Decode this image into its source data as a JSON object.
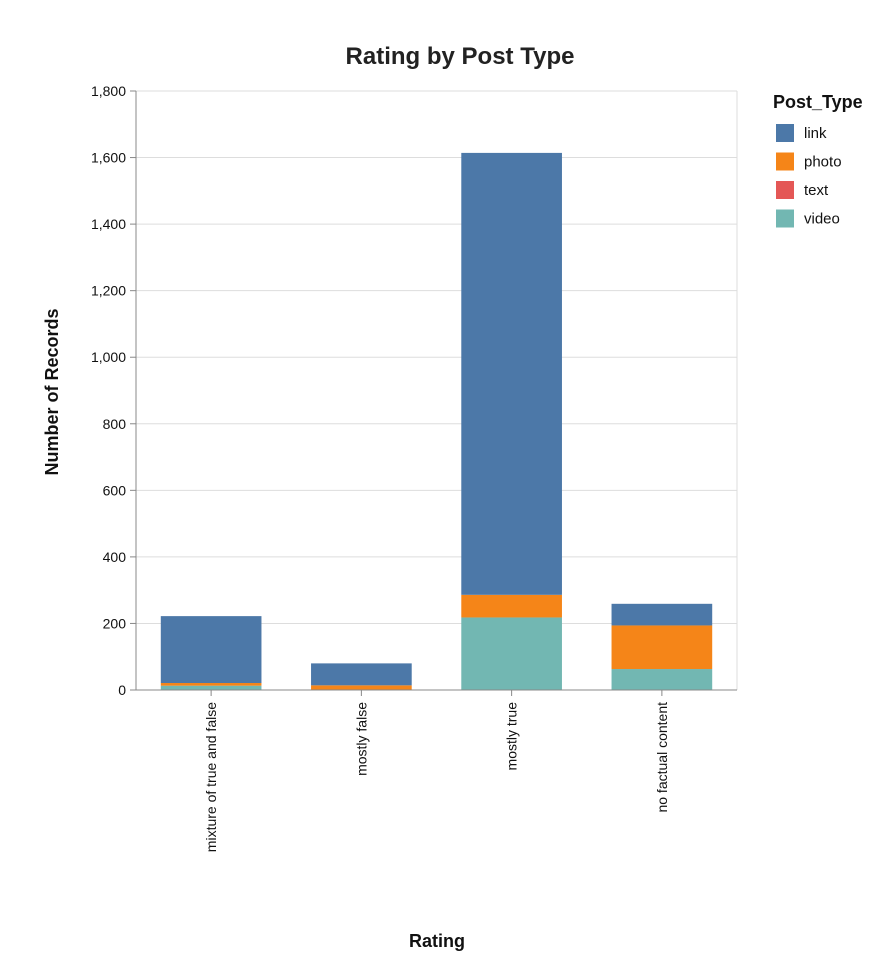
{
  "chart_data": {
    "type": "bar",
    "stacked": true,
    "title": "Rating by Post Type",
    "xlabel": "Rating",
    "ylabel": "Number of Records",
    "categories": [
      "mixture of true and false",
      "mostly false",
      "mostly true",
      "no factual content"
    ],
    "ylim": [
      0,
      1800
    ],
    "yticks": [
      0,
      200,
      400,
      600,
      800,
      1000,
      1200,
      1400,
      1600,
      1800
    ],
    "ytick_labels": [
      "0",
      "200",
      "400",
      "600",
      "800",
      "1,000",
      "1,200",
      "1,400",
      "1,600",
      "1,800"
    ],
    "grid": true,
    "legend": {
      "title": "Post_Type",
      "placement": "right"
    },
    "series": [
      {
        "name": "video",
        "color": "#72b7b2",
        "values": [
          13,
          1,
          218,
          63
        ]
      },
      {
        "name": "text",
        "color": "#e45756",
        "values": [
          0,
          0,
          0,
          0
        ]
      },
      {
        "name": "photo",
        "color": "#f58518",
        "values": [
          8,
          13,
          68,
          131
        ]
      },
      {
        "name": "link",
        "color": "#4c78a8",
        "values": [
          201,
          66,
          1328,
          65
        ]
      }
    ],
    "legend_order": [
      "link",
      "photo",
      "text",
      "video"
    ]
  }
}
